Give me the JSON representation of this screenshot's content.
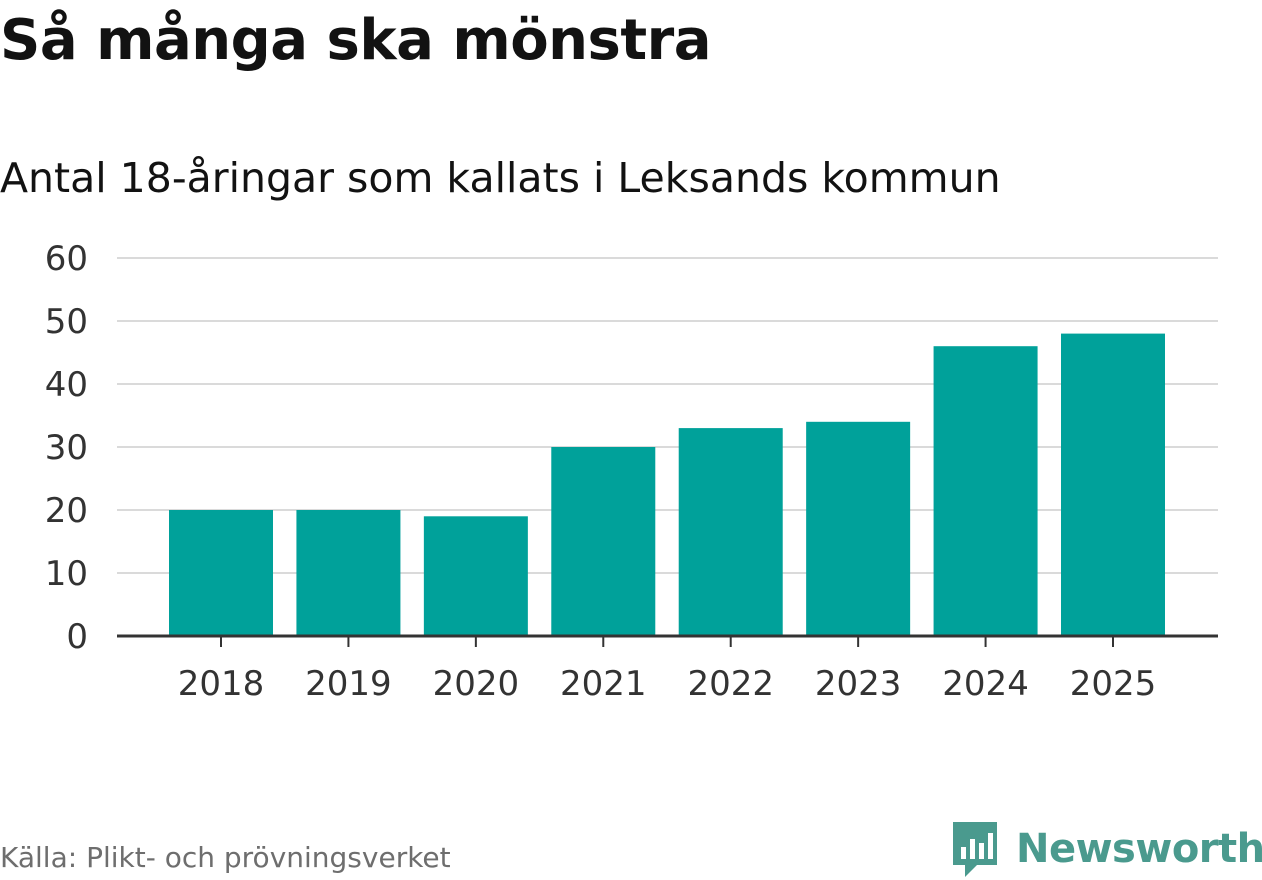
{
  "title": "Så många ska mönstra",
  "subtitle": "Antal 18-åringar som kallats i Leksands kommun",
  "source": "Källa: Plikt- och prövningsverket",
  "brand": {
    "name": "Newsworthy",
    "color": "#4a9a8e",
    "icon": "bar-chart-speech-bubble-icon"
  },
  "colors": {
    "bar": "#00a19a",
    "grid": "#dadada",
    "axis": "#333333",
    "tick_text": "#333333"
  },
  "chart_data": {
    "type": "bar",
    "title": "Så många ska mönstra",
    "subtitle": "Antal 18-åringar som kallats i Leksands kommun",
    "categories": [
      "2018",
      "2019",
      "2020",
      "2021",
      "2022",
      "2023",
      "2024",
      "2025"
    ],
    "values": [
      20,
      20,
      19,
      30,
      33,
      34,
      46,
      48
    ],
    "xlabel": "",
    "ylabel": "",
    "ylim": [
      0,
      60
    ],
    "yticks": [
      "0",
      "10",
      "20",
      "30",
      "40",
      "50",
      "60"
    ],
    "grid": true,
    "legend": "none"
  }
}
